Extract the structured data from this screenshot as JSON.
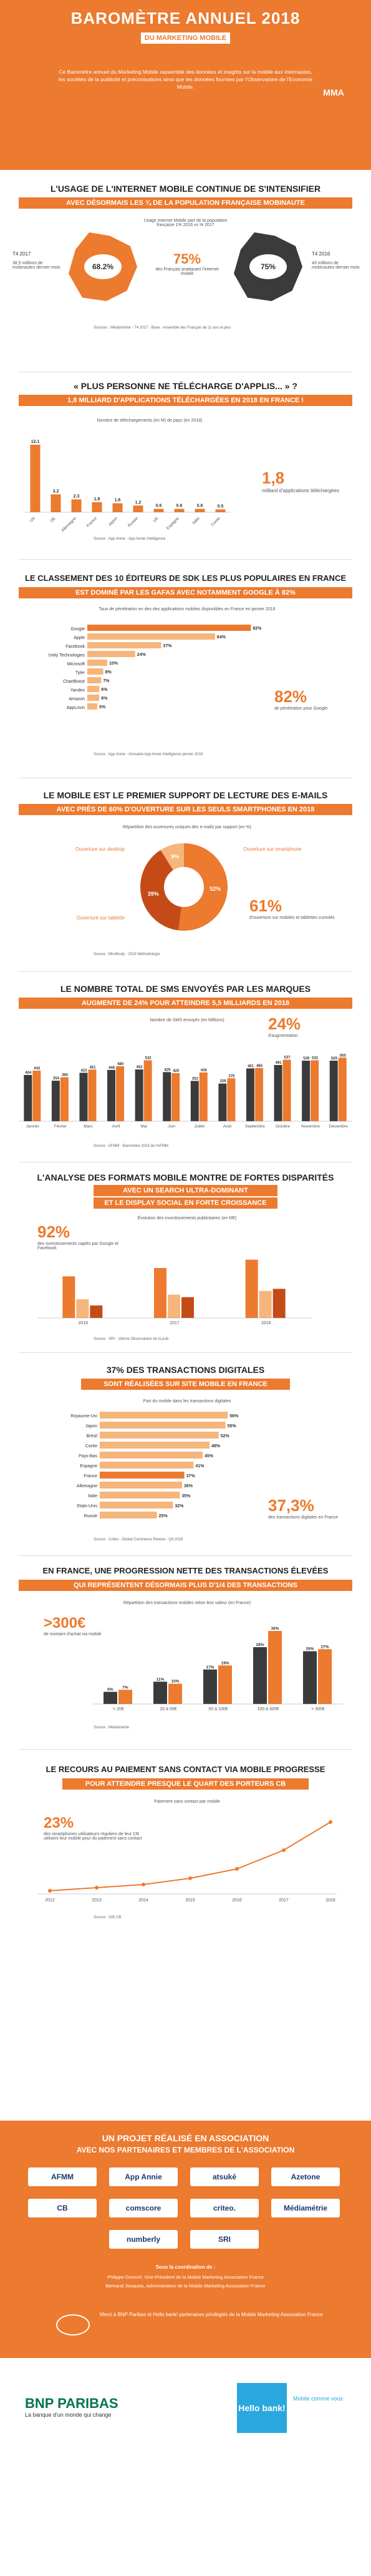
{
  "header": {
    "title": "BAROMÈTRE ANNUEL 2018",
    "subtitle": "DU MARKETING MOBILE",
    "intro": "Ce Baromètre annuel du Marketing Mobile rassemble des données et insights sur la mobile aux internautes, les sociétés de la publicité et préconisations ainsi que les données fournies par l'Observatoire de l'Economie Mobile.",
    "logo": "MMA"
  },
  "s1": {
    "title": "L'USAGE DE L'INTERNET MOBILE CONTINUE DE S'INTENSIFIER",
    "band": "AVEC DÉSORMAIS LES ¾ DE LA POPULATION FRANÇAISE MOBINAUTE",
    "legend": "Usage Internet Mobile part de la population française 1% 2016 vs % 2017",
    "left_year": "T4 2017",
    "left_value": "68.2%",
    "left_label": "38,5 millions de mobinautes dernier mois",
    "center_value": "75%",
    "center_label": "des Français pratiquant l'internet mobile",
    "right_value": "75%",
    "right_year": "T4 2016",
    "right_label": "43 millions de mobinautes dernier mois",
    "source": "Sources : Médiamétrie - T4 2017 - Base : ensemble des Français de 11 ans et plus"
  },
  "s2": {
    "title": "« PLUS PERSONNE NE TÉLÉCHARGE D'APPLIS... » ?",
    "band": "1,8 MILLIARD D'APPLICATIONS TÉLÉCHARGÉES EN 2018 EN FRANCE !",
    "chart_title": "Nombre de téléchargements (en M) de pays (en 2018)",
    "big": "1,8",
    "big_label": "milliard d'applications téléchargées",
    "source": "Source : App Annie - App Annie Intelligence"
  },
  "s3": {
    "title": "LE CLASSEMENT DES 10 ÉDITEURS DE SDK LES PLUS POPULAIRES EN FRANCE",
    "band": "EST DOMINÉ PAR LES GAFAS AVEC NOTAMMENT GOOGLE À 82%",
    "chart_title": "Taux de pénétration en des des applications mobiles disponibles en France en janvier 2018",
    "big": "82%",
    "big_label": "de pénétration pour Google",
    "source": "Source : App Annie - Annuaire App Annie Intelligence janvier 2018"
  },
  "s4": {
    "title": "LE MOBILE EST LE PREMIER SUPPORT DE LECTURE DES E-MAILS",
    "band": "AVEC PRÈS DE 60% D'OUVERTURE SUR LES SEULS SMARTPHONES EN 2018",
    "chart_title": "Répartition des ouvertures uniques des e-mails par support (en %)",
    "slice_desktop": "Ouverture sur desktop",
    "slice_smart": "Ouverture sur smartphone",
    "slice_tablet": "Ouverture sur tablette",
    "big": "61%",
    "big_label": "d'ouverture sur mobiles et tablettes cumulés",
    "source": "Source : Mindbody - 2018 Méthodologie"
  },
  "s5": {
    "title": "LE NOMBRE TOTAL DE SMS ENVOYÉS PAR LES MARQUES",
    "band": "AUGMENTE DE 24% POUR ATTEINDRE 5,5 MILLIARDS EN 2018",
    "chart_title": "Nombre de SMS envoyés (en Millions)",
    "big": "24%",
    "big_label": "d'augmentation",
    "source": "Source : AFMM - Baromètre 2018 de l'AFMM"
  },
  "s6": {
    "title": "L'ANALYSE DES FORMATS MOBILE MONTRE DE FORTES DISPARITÉS",
    "band1": "AVEC UN SEARCH ULTRA-DOMINANT",
    "band2": "ET LE DISPLAY SOCIAL EN FORTE CROISSANCE",
    "chart_title": "Évolution des investissements publicitaires (en M€)",
    "big": "92%",
    "big_label": "des investissements captés par Google et Facebook",
    "source": "Source : SRI - 19ème Observatoire de la pub"
  },
  "s7": {
    "title": "37% DES TRANSACTIONS DIGITALES",
    "band": "SONT RÉALISÉES SUR SITE MOBILE EN FRANCE",
    "chart_title": "Part du mobile dans les transactions digitales",
    "big": "37,3%",
    "big_label": "des transactions digitales en France",
    "source": "Source : Criteo - Global Commerce Review - Q4 2018"
  },
  "s8": {
    "title": "EN FRANCE, UNE PROGRESSION NETTE DES TRANSACTIONS ÉLEVÉES",
    "band": "QUI REPRÉSENTENT DÉSORMAIS PLUS D'1/4 DES TRANSACTIONS",
    "chart_title": "Répartition des transactions mobiles selon leur valeur (en France)",
    "big": ">300€",
    "big_label": "de montant d'achat via mobile",
    "source": "Source : Médiamétrie"
  },
  "s9": {
    "title": "LE RECOURS AU PAIEMENT SANS CONTACT VIA MOBILE PROGRESSE",
    "band": "POUR ATTEINDRE PRESQUE LE QUART DES PORTEURS CB",
    "chart_title": "Paiement sans contact par mobile",
    "big": "23%",
    "big_label": "des smartphones utilisateurs réguliers de leur CB utilisent leur mobile pour du paiement sans contact",
    "source": "Source : GIE CB"
  },
  "footer": {
    "title1": "UN PROJET RÉALISÉ EN ASSOCIATION",
    "title2": "AVEC NOS PARTENAIRES ET MEMBRES DE L'ASSOCIATION",
    "partners": [
      "AFMM",
      "App Annie",
      "atsuké",
      "Azetone",
      "CB",
      "comscore",
      "criteo.",
      "Médiamétrie",
      "numberly",
      "SRI"
    ],
    "coord_title": "Sous la coordination de :",
    "coord1": "Philippe Duevort, Vice-Président de la Mobile Marketing Association France",
    "coord2": "Bertrand Jonquois, Administrateur de la Mobile Marketing Association France",
    "sponsor": "Merci à BNP Paribas et Hello bank! partenaires privilégiés de la Mobile Marketing Association France"
  },
  "bottom": {
    "bnp": "BNP PARIBAS",
    "bnp_tag": "La banque d'un monde qui change",
    "hello": "Hello bank!",
    "hello_tag": "Mobile comme vous"
  },
  "chart_data": [
    {
      "type": "bar",
      "title": "Nombre de téléchargements (en M) de pays (en 2018)",
      "categories": [
        "US",
        "DE",
        "Allemagne",
        "France",
        "Japon",
        "Russie",
        "UK",
        "Espagne",
        "Italie",
        "Corée"
      ],
      "series": [
        {
          "name": "App Store",
          "values": [
            12.1,
            3.2,
            2.3,
            1.8,
            1.6,
            1.2,
            0.6,
            0.6,
            0.6,
            0.5
          ]
        }
      ],
      "ylim": [
        0,
        14
      ]
    },
    {
      "type": "bar",
      "title": "Taux de pénétration en des des applications mobiles disponibles en France en janvier 2018",
      "categories": [
        "Google",
        "Apple",
        "Facebook",
        "Unity Technologies",
        "Microsoft",
        "Tyler",
        "ChartBoost",
        "Yandex",
        "Amazon",
        "AppLovin"
      ],
      "values": [
        82,
        64,
        37,
        24,
        10,
        8,
        7,
        6,
        6,
        5
      ]
    },
    {
      "type": "pie",
      "title": "Répartition des ouvertures uniques des e-mails par support (en %)",
      "categories": [
        "Ouverture sur smartphone",
        "Ouverture sur desktop",
        "Ouverture sur tablette"
      ],
      "values": [
        52,
        39,
        9
      ]
    },
    {
      "type": "bar",
      "title": "Nombre de SMS envoyés (en Millions)",
      "categories": [
        "Janvier",
        "Février",
        "Mars",
        "Avril",
        "Mai",
        "Juin",
        "Juillet",
        "Août",
        "Septembre",
        "Octobre",
        "Novembre",
        "Décembre"
      ],
      "series": [
        {
          "name": "2017",
          "values": [
            404,
            354,
            423,
            448,
            452,
            429,
            352,
            329,
            461,
            491,
            529,
            529
          ]
        },
        {
          "name": "2018",
          "values": [
            442,
            384,
            451,
            480,
            532,
            420,
            426,
            375,
            465,
            537,
            532,
            555
          ]
        }
      ]
    },
    {
      "type": "bar",
      "title": "Évolution des investissements publicitaires (en M€)",
      "categories": [
        "2016",
        "2017",
        "2018"
      ],
      "series": [
        {
          "name": "Search",
          "values": [
            1000,
            1200,
            1400
          ]
        },
        {
          "name": "Display",
          "values": [
            450,
            560,
            650
          ]
        },
        {
          "name": "Social",
          "values": [
            300,
            500,
            700
          ]
        }
      ]
    },
    {
      "type": "bar",
      "title": "Part du mobile dans les transactions digitales",
      "categories": [
        "Royaume-Uni",
        "Japon",
        "Brésil",
        "Corée",
        "Pays-Bas",
        "Espagne",
        "France",
        "Allemagne",
        "Italie",
        "Etats-Unis",
        "Russie"
      ],
      "values": [
        56,
        55,
        52,
        48,
        45,
        41,
        37,
        36,
        35,
        32,
        25
      ]
    },
    {
      "type": "bar",
      "title": "Répartition des transactions mobiles selon leur valeur (en France)",
      "categories": [
        "< 20€",
        "20 à 50€",
        "50 à 100€",
        "100 à 300€",
        "> 300€"
      ],
      "series": [
        {
          "name": "2017",
          "values": [
            6,
            11,
            17,
            28,
            26
          ]
        },
        {
          "name": "2018",
          "values": [
            7,
            10,
            19,
            36,
            27
          ]
        }
      ]
    },
    {
      "type": "line",
      "title": "Paiement sans contact par mobile",
      "x": [
        "2012",
        "2013",
        "2014",
        "2015",
        "2016",
        "2017",
        "2018"
      ],
      "values": [
        1,
        2,
        3,
        5,
        8,
        14,
        23
      ]
    }
  ]
}
